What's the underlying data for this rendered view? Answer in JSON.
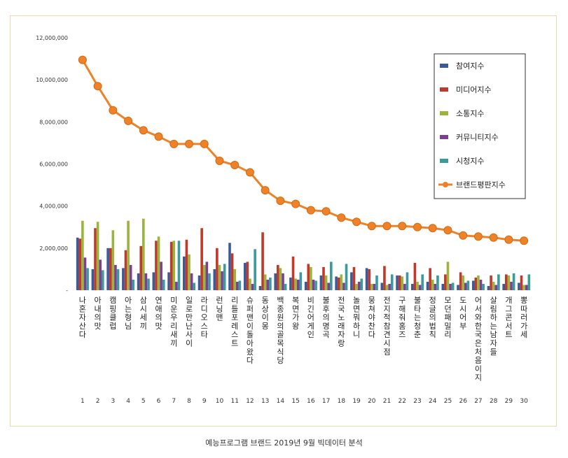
{
  "chart_data": {
    "type": "bar",
    "title": "",
    "xlabel": "",
    "ylabel": "",
    "ylim": [
      0,
      12000000
    ],
    "y_ticks": [
      "12,000,000",
      "10,000,000",
      "8,000,000",
      "6,000,000",
      "4,000,000",
      "2,000,000",
      "-"
    ],
    "grid": false,
    "legend_position": "top-right",
    "ranks": [
      1,
      2,
      3,
      4,
      5,
      6,
      7,
      8,
      9,
      10,
      11,
      12,
      13,
      14,
      15,
      16,
      17,
      18,
      19,
      20,
      21,
      22,
      23,
      24,
      25,
      26,
      27,
      28,
      29,
      30
    ],
    "categories": [
      "나 혼자 산다",
      "아내의 맛",
      "캠핑클럽",
      "아는 형님",
      "삼시세끼",
      "연애의 맛",
      "미운 우리 새끼",
      "일로 만난 사이",
      "라디오스타",
      "런닝맨",
      "리틀 포레스트",
      "슈퍼맨이 돌아왔다",
      "동상이몽",
      "백종원의 골목식당",
      "복면가왕",
      "비긴어게인",
      "불후의 명곡",
      "전국노래자랑",
      "놀면 뭐하니",
      "뭉쳐야 찬다",
      "전지적 참견 시점",
      "구해줘 홈즈",
      "불타는 청춘",
      "정글의 법칙",
      "모던 패밀리",
      "도시어부",
      "어서와 한국은 처음이지",
      "살림하는 남자들",
      "개그콘서트",
      "뽕따러가세"
    ],
    "series": [
      {
        "name": "참여지수",
        "color": "#3a5a9a",
        "type": "bar",
        "values": [
          2500000,
          1000000,
          2000000,
          1050000,
          800000,
          850000,
          850000,
          1600000,
          700000,
          1000000,
          2250000,
          1300000,
          200000,
          800000,
          600000,
          400000,
          700000,
          650000,
          850000,
          1050000,
          350000,
          700000,
          300000,
          400000,
          300000,
          250000,
          450000,
          200000,
          300000,
          350000
        ]
      },
      {
        "name": "미디어지수",
        "color": "#c0392b",
        "type": "bar",
        "values": [
          2450000,
          2950000,
          2000000,
          1900000,
          2100000,
          2350000,
          2300000,
          2400000,
          2950000,
          2000000,
          1750000,
          1350000,
          2750000,
          1200000,
          1600000,
          1250000,
          1100000,
          600000,
          1100000,
          1000000,
          1150000,
          700000,
          1300000,
          1050000,
          750000,
          850000,
          600000,
          700000,
          750000,
          700000
        ]
      },
      {
        "name": "소통지수",
        "color": "#9bb53c",
        "type": "bar",
        "values": [
          3300000,
          3250000,
          2850000,
          3300000,
          3400000,
          2550000,
          2350000,
          1700000,
          1200000,
          1200000,
          1000000,
          550000,
          750000,
          1050000,
          550000,
          1100000,
          700000,
          750000,
          300000,
          300000,
          250000,
          650000,
          400000,
          500000,
          1350000,
          700000,
          700000,
          400000,
          700000,
          250000
        ]
      },
      {
        "name": "커뮤니티지수",
        "color": "#7d3e96",
        "type": "bar",
        "values": [
          1550000,
          1450000,
          1200000,
          1200000,
          800000,
          1350000,
          400000,
          800000,
          1350000,
          900000,
          400000,
          300000,
          500000,
          800000,
          500000,
          500000,
          350000,
          350000,
          400000,
          300000,
          300000,
          300000,
          250000,
          300000,
          300000,
          350000,
          500000,
          250000,
          400000,
          250000
        ]
      },
      {
        "name": "시청지수",
        "color": "#3b9a9c",
        "type": "bar",
        "values": [
          1050000,
          950000,
          1000000,
          500000,
          550000,
          500000,
          2350000,
          350000,
          800000,
          1250000,
          450000,
          1950000,
          600000,
          300000,
          850000,
          450000,
          1350000,
          1250000,
          550000,
          700000,
          750000,
          850000,
          750000,
          700000,
          350000,
          450000,
          300000,
          750000,
          800000,
          750000
        ]
      },
      {
        "name": "브랜드평판지수",
        "color": "#ee8229",
        "type": "line",
        "values": [
          10950000,
          9700000,
          8550000,
          8050000,
          7600000,
          7300000,
          6950000,
          6950000,
          6950000,
          6150000,
          5950000,
          5600000,
          4750000,
          4250000,
          4100000,
          3800000,
          3750000,
          3450000,
          3250000,
          3050000,
          3050000,
          3050000,
          3000000,
          2950000,
          2850000,
          2600000,
          2550000,
          2500000,
          2400000,
          2350000
        ]
      }
    ]
  },
  "caption": "예능프로그램 브랜드 2019년 9월 빅데이터 분석"
}
